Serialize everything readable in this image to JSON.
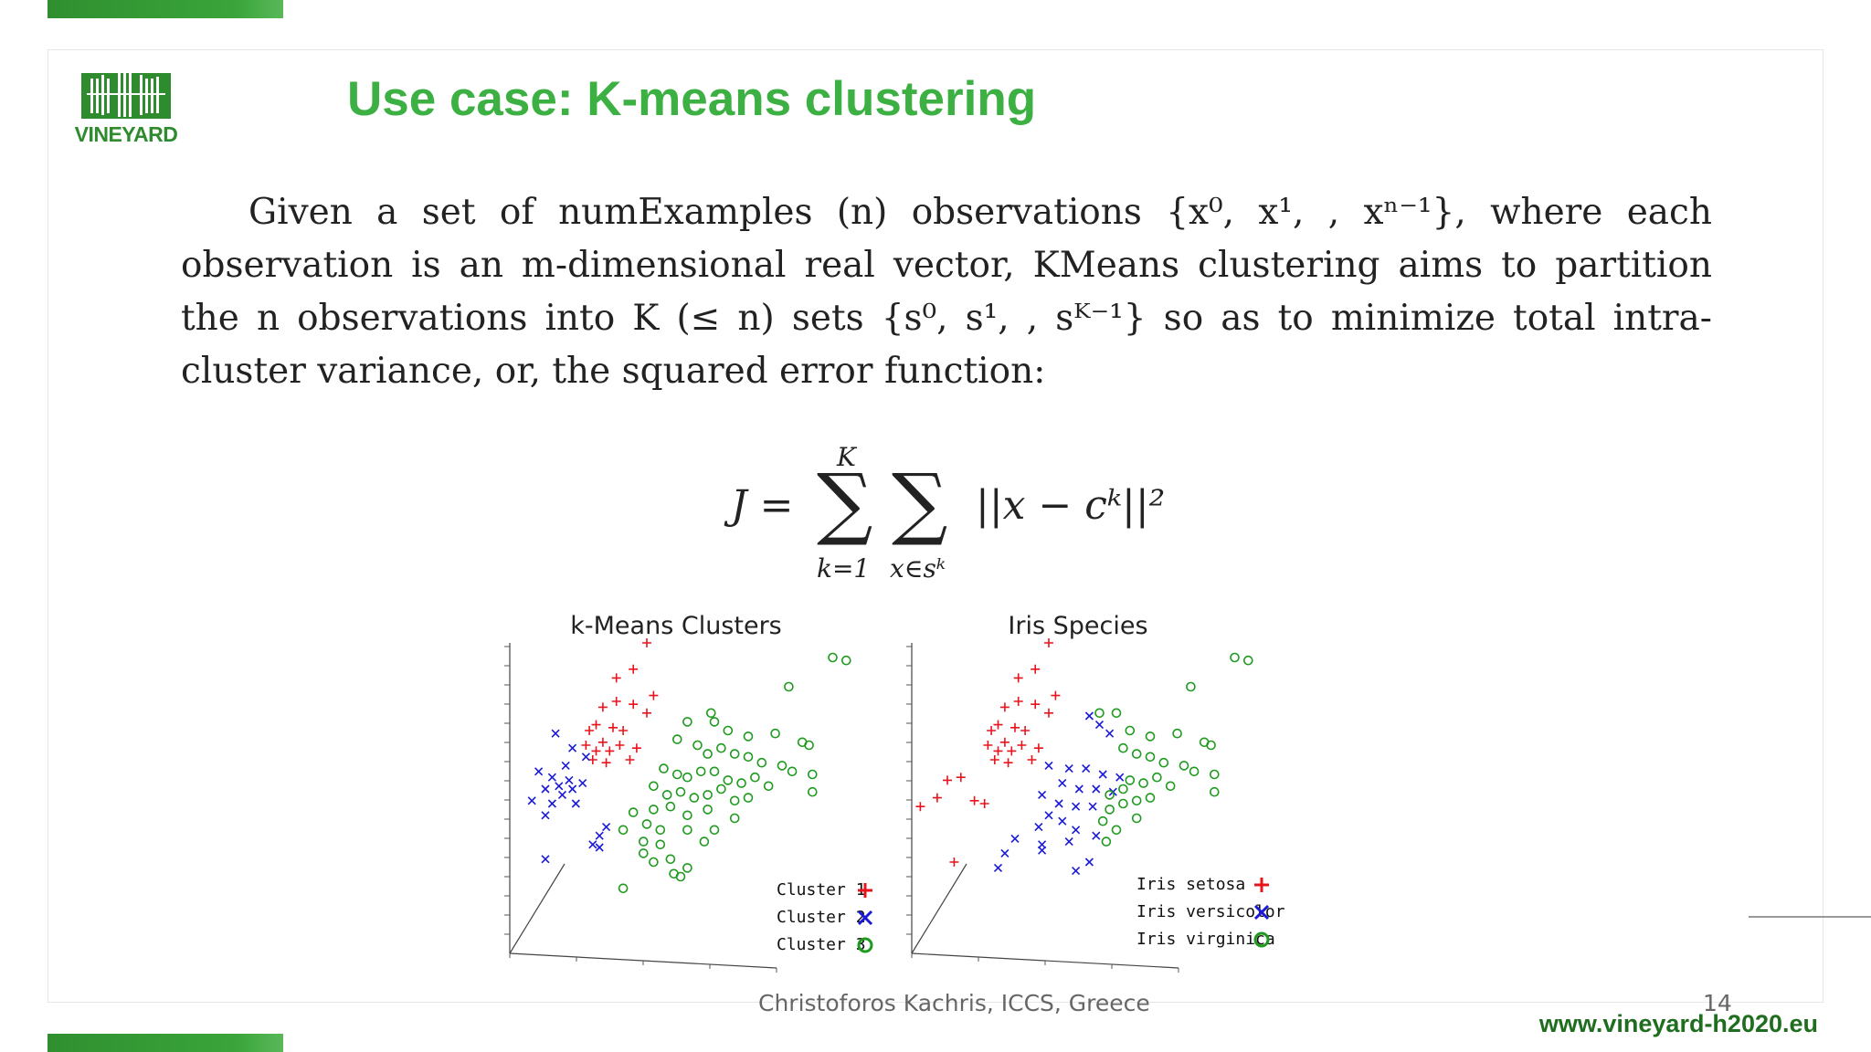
{
  "slide": {
    "logo_text": "VINEYARD",
    "title": "Use case: K-means clustering",
    "paragraph_lines": [
      "Given a set of numExamples (n) observations {x⁰, x¹, , xⁿ⁻¹}, where each",
      "observation is an m-dimensional real vector, KMeans clustering aims to partition",
      "the n observations into K (≤ n) sets {s⁰, s¹, , sᴷ⁻¹} so as to minimize total intra-",
      "cluster variance, or, the squared error function:"
    ],
    "formula": {
      "lhs": "J =",
      "sum1_top": "K",
      "sum1_bottom": "k=1",
      "sum2_bottom": "x∈sᵏ",
      "term": "||x − cᵏ||²"
    },
    "footer": "Christoforos Kachris, ICCS, Greece",
    "page_number": "14",
    "website": "www.vineyard-h2020.eu"
  },
  "colors": {
    "title_green": "#3cb043",
    "brand_green": "#2e8b2e",
    "setosa_red": "#e8141c",
    "versicolor_blue": "#1a1ad6",
    "virginica_green": "#1e9a1e"
  },
  "chart_data": [
    {
      "type": "scatter",
      "title": "k-Means Clusters",
      "legend": [
        "Cluster 1",
        "Cluster 2",
        "Cluster 3"
      ],
      "legend_placement": "bottom-right",
      "series": [
        {
          "name": "Cluster 1",
          "marker": "plus",
          "points": [
            [
              0.4,
              0.0
            ],
            [
              0.31,
              0.12
            ],
            [
              0.36,
              0.09
            ],
            [
              0.42,
              0.18
            ],
            [
              0.27,
              0.22
            ],
            [
              0.31,
              0.2
            ],
            [
              0.36,
              0.21
            ],
            [
              0.4,
              0.24
            ],
            [
              0.23,
              0.3
            ],
            [
              0.25,
              0.28
            ],
            [
              0.3,
              0.29
            ],
            [
              0.33,
              0.3
            ],
            [
              0.27,
              0.34
            ],
            [
              0.22,
              0.35
            ],
            [
              0.25,
              0.37
            ],
            [
              0.29,
              0.37
            ],
            [
              0.32,
              0.35
            ],
            [
              0.37,
              0.36
            ],
            [
              0.24,
              0.4
            ],
            [
              0.28,
              0.41
            ],
            [
              0.35,
              0.4
            ]
          ]
        },
        {
          "name": "Cluster 2",
          "marker": "x",
          "points": [
            [
              0.13,
              0.31
            ],
            [
              0.18,
              0.36
            ],
            [
              0.22,
              0.39
            ],
            [
              0.16,
              0.42
            ],
            [
              0.08,
              0.44
            ],
            [
              0.12,
              0.46
            ],
            [
              0.17,
              0.47
            ],
            [
              0.21,
              0.48
            ],
            [
              0.14,
              0.49
            ],
            [
              0.1,
              0.5
            ],
            [
              0.18,
              0.5
            ],
            [
              0.15,
              0.52
            ],
            [
              0.06,
              0.54
            ],
            [
              0.12,
              0.55
            ],
            [
              0.19,
              0.55
            ],
            [
              0.1,
              0.59
            ],
            [
              0.28,
              0.63
            ],
            [
              0.26,
              0.66
            ],
            [
              0.24,
              0.69
            ],
            [
              0.1,
              0.74
            ],
            [
              0.26,
              0.7
            ]
          ]
        },
        {
          "name": "Cluster 3",
          "marker": "circle",
          "points": [
            [
              0.95,
              0.05
            ],
            [
              0.99,
              0.06
            ],
            [
              0.82,
              0.15
            ],
            [
              0.52,
              0.27
            ],
            [
              0.59,
              0.24
            ],
            [
              0.6,
              0.27
            ],
            [
              0.64,
              0.3
            ],
            [
              0.7,
              0.32
            ],
            [
              0.78,
              0.31
            ],
            [
              0.86,
              0.34
            ],
            [
              0.88,
              0.35
            ],
            [
              0.49,
              0.33
            ],
            [
              0.55,
              0.35
            ],
            [
              0.58,
              0.38
            ],
            [
              0.62,
              0.36
            ],
            [
              0.66,
              0.38
            ],
            [
              0.7,
              0.39
            ],
            [
              0.74,
              0.41
            ],
            [
              0.8,
              0.42
            ],
            [
              0.83,
              0.44
            ],
            [
              0.89,
              0.45
            ],
            [
              0.45,
              0.43
            ],
            [
              0.49,
              0.45
            ],
            [
              0.52,
              0.46
            ],
            [
              0.56,
              0.44
            ],
            [
              0.6,
              0.44
            ],
            [
              0.64,
              0.47
            ],
            [
              0.68,
              0.48
            ],
            [
              0.72,
              0.46
            ],
            [
              0.76,
              0.49
            ],
            [
              0.89,
              0.51
            ],
            [
              0.42,
              0.49
            ],
            [
              0.46,
              0.52
            ],
            [
              0.5,
              0.51
            ],
            [
              0.54,
              0.53
            ],
            [
              0.58,
              0.52
            ],
            [
              0.62,
              0.5
            ],
            [
              0.66,
              0.54
            ],
            [
              0.7,
              0.53
            ],
            [
              0.36,
              0.58
            ],
            [
              0.42,
              0.57
            ],
            [
              0.47,
              0.56
            ],
            [
              0.52,
              0.59
            ],
            [
              0.58,
              0.57
            ],
            [
              0.66,
              0.6
            ],
            [
              0.4,
              0.62
            ],
            [
              0.44,
              0.64
            ],
            [
              0.52,
              0.64
            ],
            [
              0.6,
              0.64
            ],
            [
              0.33,
              0.64
            ],
            [
              0.39,
              0.68
            ],
            [
              0.44,
              0.69
            ],
            [
              0.57,
              0.68
            ],
            [
              0.39,
              0.72
            ],
            [
              0.42,
              0.75
            ],
            [
              0.47,
              0.74
            ],
            [
              0.52,
              0.77
            ],
            [
              0.48,
              0.79
            ],
            [
              0.5,
              0.8
            ],
            [
              0.33,
              0.84
            ]
          ]
        }
      ]
    },
    {
      "type": "scatter",
      "title": "Iris Species",
      "legend": [
        "Iris setosa",
        "Iris versicolor",
        "Iris virginica"
      ],
      "legend_placement": "bottom-right",
      "series": [
        {
          "name": "Iris setosa",
          "marker": "plus",
          "points": [
            [
              0.4,
              0.0
            ],
            [
              0.31,
              0.12
            ],
            [
              0.36,
              0.09
            ],
            [
              0.42,
              0.18
            ],
            [
              0.27,
              0.22
            ],
            [
              0.31,
              0.2
            ],
            [
              0.36,
              0.21
            ],
            [
              0.4,
              0.24
            ],
            [
              0.23,
              0.3
            ],
            [
              0.25,
              0.28
            ],
            [
              0.3,
              0.29
            ],
            [
              0.33,
              0.3
            ],
            [
              0.27,
              0.34
            ],
            [
              0.22,
              0.35
            ],
            [
              0.25,
              0.37
            ],
            [
              0.29,
              0.37
            ],
            [
              0.32,
              0.35
            ],
            [
              0.37,
              0.36
            ],
            [
              0.24,
              0.4
            ],
            [
              0.28,
              0.41
            ],
            [
              0.35,
              0.4
            ],
            [
              0.1,
              0.47
            ],
            [
              0.14,
              0.46
            ],
            [
              0.07,
              0.53
            ],
            [
              0.02,
              0.56
            ],
            [
              0.18,
              0.54
            ],
            [
              0.21,
              0.55
            ],
            [
              0.12,
              0.75
            ]
          ]
        },
        {
          "name": "Iris versicolor",
          "marker": "x",
          "points": [
            [
              0.52,
              0.25
            ],
            [
              0.55,
              0.28
            ],
            [
              0.58,
              0.31
            ],
            [
              0.4,
              0.42
            ],
            [
              0.46,
              0.43
            ],
            [
              0.51,
              0.43
            ],
            [
              0.56,
              0.45
            ],
            [
              0.61,
              0.46
            ],
            [
              0.44,
              0.48
            ],
            [
              0.49,
              0.5
            ],
            [
              0.54,
              0.5
            ],
            [
              0.59,
              0.51
            ],
            [
              0.38,
              0.52
            ],
            [
              0.43,
              0.55
            ],
            [
              0.48,
              0.56
            ],
            [
              0.53,
              0.56
            ],
            [
              0.4,
              0.59
            ],
            [
              0.44,
              0.61
            ],
            [
              0.37,
              0.63
            ],
            [
              0.48,
              0.64
            ],
            [
              0.54,
              0.66
            ],
            [
              0.3,
              0.67
            ],
            [
              0.38,
              0.69
            ],
            [
              0.46,
              0.68
            ],
            [
              0.27,
              0.72
            ],
            [
              0.38,
              0.71
            ],
            [
              0.52,
              0.75
            ],
            [
              0.25,
              0.77
            ],
            [
              0.48,
              0.78
            ]
          ]
        },
        {
          "name": "Iris virginica",
          "marker": "circle",
          "points": [
            [
              0.95,
              0.05
            ],
            [
              0.99,
              0.06
            ],
            [
              0.82,
              0.15
            ],
            [
              0.55,
              0.24
            ],
            [
              0.6,
              0.24
            ],
            [
              0.64,
              0.3
            ],
            [
              0.7,
              0.32
            ],
            [
              0.78,
              0.31
            ],
            [
              0.86,
              0.34
            ],
            [
              0.88,
              0.35
            ],
            [
              0.62,
              0.36
            ],
            [
              0.66,
              0.38
            ],
            [
              0.7,
              0.39
            ],
            [
              0.74,
              0.41
            ],
            [
              0.8,
              0.42
            ],
            [
              0.83,
              0.44
            ],
            [
              0.89,
              0.45
            ],
            [
              0.64,
              0.47
            ],
            [
              0.68,
              0.48
            ],
            [
              0.72,
              0.46
            ],
            [
              0.76,
              0.49
            ],
            [
              0.89,
              0.51
            ],
            [
              0.58,
              0.52
            ],
            [
              0.62,
              0.5
            ],
            [
              0.66,
              0.54
            ],
            [
              0.7,
              0.53
            ],
            [
              0.58,
              0.57
            ],
            [
              0.66,
              0.6
            ],
            [
              0.6,
              0.64
            ],
            [
              0.57,
              0.68
            ],
            [
              0.62,
              0.55
            ],
            [
              0.56,
              0.61
            ]
          ]
        }
      ]
    }
  ]
}
